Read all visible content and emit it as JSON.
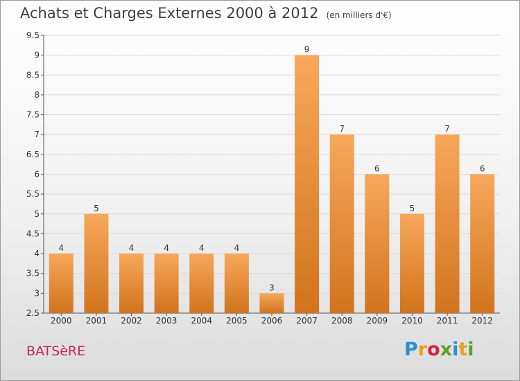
{
  "header": {
    "title": "Achats et Charges Externes 2000 à 2012",
    "unit": "(en milliers d'€)"
  },
  "commune": "BATSèRE",
  "logo": {
    "letters": [
      "P",
      "r",
      "o",
      "x",
      "i",
      "t",
      "i"
    ],
    "colors": [
      "#2a8fd6",
      "#e8a020",
      "#d3263c",
      "#5aa02c",
      "#2a8fd6",
      "#e8a020",
      "#5aa02c"
    ]
  },
  "colors": {
    "bar_top": "#f7a85a",
    "bar_bottom": "#d2731c",
    "grid": "#d8d8d8",
    "title": "#3f3f3f",
    "commune": "#c8235a"
  },
  "chart_data": {
    "type": "bar",
    "categories": [
      "2000",
      "2001",
      "2002",
      "2003",
      "2004",
      "2005",
      "2006",
      "2007",
      "2008",
      "2009",
      "2010",
      "2011",
      "2012"
    ],
    "values": [
      4,
      5,
      4,
      4,
      4,
      4,
      3,
      9,
      7,
      6,
      5,
      7,
      6
    ],
    "ylim": [
      2.5,
      9.5
    ],
    "yticks": [
      "2.5",
      "3",
      "3.5",
      "4",
      "4.5",
      "5",
      "5.5",
      "6",
      "6.5",
      "7",
      "7.5",
      "8",
      "8.5",
      "9",
      "9.5"
    ],
    "grid": true
  }
}
